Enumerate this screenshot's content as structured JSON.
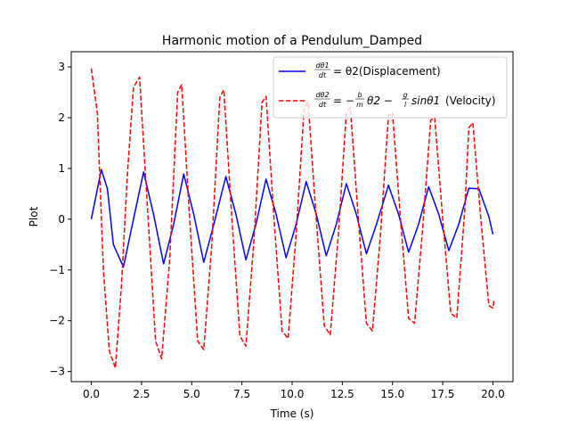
{
  "chart_data": {
    "type": "line",
    "title": "Harmonic motion of a Pendulum_Damped",
    "xlabel": "Time (s)",
    "ylabel": "Plot",
    "xlim": [
      -1.0,
      21.0
    ],
    "ylim": [
      -3.2,
      3.3
    ],
    "xticks": [
      0.0,
      2.5,
      5.0,
      7.5,
      10.0,
      12.5,
      15.0,
      17.5,
      20.0
    ],
    "xtick_labels": [
      "0.0",
      "2.5",
      "5.0",
      "7.5",
      "10.0",
      "12.5",
      "15.0",
      "17.5",
      "20.0"
    ],
    "yticks": [
      -3,
      -2,
      -1,
      0,
      1,
      2,
      3
    ],
    "ytick_labels": [
      "−3",
      "−2",
      "−1",
      "0",
      "1",
      "2",
      "3"
    ],
    "grid": false,
    "legend_position": "top-right",
    "series": [
      {
        "name": "dθ1/dt = θ2(Displacement)",
        "color": "#0000ff",
        "style": "solid",
        "points": [
          [
            0.0,
            0.0
          ],
          [
            0.5,
            0.98
          ],
          [
            0.8,
            0.6
          ],
          [
            1.1,
            -0.5
          ],
          [
            1.6,
            -0.94
          ],
          [
            2.1,
            0.0
          ],
          [
            2.6,
            0.93
          ],
          [
            3.1,
            0.1
          ],
          [
            3.6,
            -0.88
          ],
          [
            4.1,
            -0.1
          ],
          [
            4.6,
            0.89
          ],
          [
            5.1,
            0.1
          ],
          [
            5.6,
            -0.85
          ],
          [
            6.1,
            -0.1
          ],
          [
            6.7,
            0.84
          ],
          [
            7.2,
            0.1
          ],
          [
            7.7,
            -0.8
          ],
          [
            8.2,
            -0.1
          ],
          [
            8.7,
            0.79
          ],
          [
            9.2,
            0.1
          ],
          [
            9.7,
            -0.76
          ],
          [
            10.2,
            -0.1
          ],
          [
            10.7,
            0.74
          ],
          [
            11.2,
            0.1
          ],
          [
            11.7,
            -0.72
          ],
          [
            12.2,
            -0.1
          ],
          [
            12.7,
            0.7
          ],
          [
            13.2,
            0.1
          ],
          [
            13.7,
            -0.68
          ],
          [
            14.2,
            -0.1
          ],
          [
            14.8,
            0.67
          ],
          [
            15.3,
            0.1
          ],
          [
            15.8,
            -0.65
          ],
          [
            16.3,
            -0.1
          ],
          [
            16.8,
            0.64
          ],
          [
            17.3,
            0.1
          ],
          [
            17.8,
            -0.62
          ],
          [
            18.3,
            -0.1
          ],
          [
            18.8,
            0.61
          ],
          [
            19.3,
            0.6
          ],
          [
            19.8,
            0.05
          ],
          [
            20.0,
            -0.3
          ]
        ]
      },
      {
        "name": "dθ2/dt = −b/m θ2 − g/l sinθ1(Velocity)",
        "color": "#ff0000",
        "style": "dashed",
        "points": [
          [
            0.0,
            2.97
          ],
          [
            0.3,
            2.1
          ],
          [
            0.6,
            -1.0
          ],
          [
            0.9,
            -2.6
          ],
          [
            1.2,
            -2.93
          ],
          [
            1.5,
            -1.3
          ],
          [
            1.8,
            0.9
          ],
          [
            2.1,
            2.6
          ],
          [
            2.4,
            2.8
          ],
          [
            2.8,
            0.2
          ],
          [
            3.2,
            -2.4
          ],
          [
            3.5,
            -2.75
          ],
          [
            3.9,
            -0.8
          ],
          [
            4.3,
            2.5
          ],
          [
            4.5,
            2.65
          ],
          [
            4.9,
            0.0
          ],
          [
            5.3,
            -2.4
          ],
          [
            5.6,
            -2.57
          ],
          [
            6.0,
            -0.5
          ],
          [
            6.4,
            2.4
          ],
          [
            6.6,
            2.55
          ],
          [
            7.0,
            0.0
          ],
          [
            7.4,
            -2.3
          ],
          [
            7.7,
            -2.5
          ],
          [
            8.1,
            -0.4
          ],
          [
            8.5,
            2.3
          ],
          [
            8.7,
            2.42
          ],
          [
            9.1,
            0.0
          ],
          [
            9.5,
            -2.2
          ],
          [
            9.8,
            -2.35
          ],
          [
            10.2,
            -0.3
          ],
          [
            10.6,
            2.2
          ],
          [
            10.8,
            2.3
          ],
          [
            11.2,
            0.0
          ],
          [
            11.6,
            -2.1
          ],
          [
            11.9,
            -2.28
          ],
          [
            12.3,
            -0.3
          ],
          [
            12.7,
            2.1
          ],
          [
            12.9,
            2.2
          ],
          [
            13.3,
            0.0
          ],
          [
            13.7,
            -2.05
          ],
          [
            14.0,
            -2.2
          ],
          [
            14.4,
            -0.3
          ],
          [
            14.8,
            2.05
          ],
          [
            15.0,
            2.1
          ],
          [
            15.4,
            0.0
          ],
          [
            15.8,
            -1.95
          ],
          [
            16.1,
            -2.05
          ],
          [
            16.5,
            -0.2
          ],
          [
            16.9,
            1.95
          ],
          [
            17.1,
            2.0
          ],
          [
            17.5,
            0.0
          ],
          [
            17.9,
            -1.85
          ],
          [
            18.2,
            -1.95
          ],
          [
            18.6,
            0.2
          ],
          [
            18.8,
            1.8
          ],
          [
            19.0,
            1.9
          ],
          [
            19.4,
            0.0
          ],
          [
            19.8,
            -1.7
          ],
          [
            20.0,
            -1.75
          ],
          [
            20.05,
            -1.6
          ]
        ]
      }
    ]
  },
  "legend": {
    "entry1": {
      "frac_num": "dθ1",
      "frac_den": "dt",
      "rest": "= θ2(Displacement)"
    },
    "entry2": {
      "frac_num": "dθ2",
      "frac_den": "dt",
      "eq": "= −",
      "b_num": "b",
      "b_den": "m",
      "mid": "θ2 −",
      "g_num": "g",
      "g_den": "l",
      "tail_math": "sinθ1",
      "tail_text": "(Velocity)"
    }
  }
}
